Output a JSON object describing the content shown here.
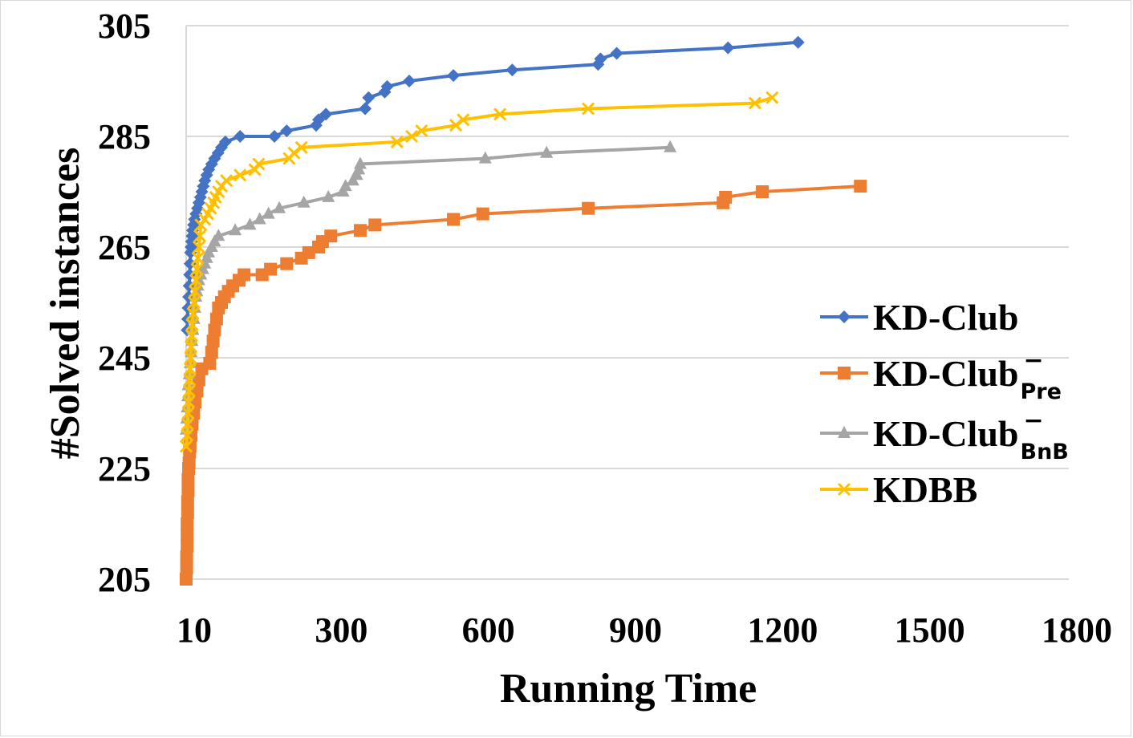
{
  "chart_data": {
    "type": "line",
    "title": "",
    "xlabel": "Running Time",
    "ylabel": "#Solved instances",
    "xlim": [
      0,
      1800
    ],
    "ylim": [
      205,
      305
    ],
    "x_ticks": [
      10,
      300,
      600,
      900,
      1200,
      1500,
      1800
    ],
    "x_tick_labels": [
      "10",
      "300",
      "600",
      "900",
      "1200",
      "1500",
      "1800"
    ],
    "y_ticks": [
      205,
      225,
      245,
      265,
      285,
      305
    ],
    "y_tick_labels": [
      "205",
      "225",
      "245",
      "265",
      "285",
      "305"
    ],
    "grid": "horizontal",
    "legend_position": "right",
    "series": [
      {
        "name": "KD-Club",
        "label_main": "KD-Club",
        "label_sub": "",
        "label_sup": "",
        "color": "#4472C4",
        "marker": "diamond",
        "points": [
          [
            2,
            250
          ],
          [
            3,
            252
          ],
          [
            4,
            254
          ],
          [
            5,
            256
          ],
          [
            6,
            258
          ],
          [
            7,
            260
          ],
          [
            8,
            262
          ],
          [
            9,
            264
          ],
          [
            10,
            265
          ],
          [
            11,
            266
          ],
          [
            12,
            267
          ],
          [
            13,
            268
          ],
          [
            15,
            269
          ],
          [
            17,
            270
          ],
          [
            20,
            271
          ],
          [
            23,
            272
          ],
          [
            26,
            273
          ],
          [
            29,
            274
          ],
          [
            32,
            275
          ],
          [
            35,
            276
          ],
          [
            38,
            277
          ],
          [
            42,
            278
          ],
          [
            46,
            279
          ],
          [
            52,
            280
          ],
          [
            58,
            281
          ],
          [
            65,
            282
          ],
          [
            72,
            283
          ],
          [
            80,
            284
          ],
          [
            110,
            285
          ],
          [
            180,
            285
          ],
          [
            205,
            286
          ],
          [
            265,
            287
          ],
          [
            270,
            288
          ],
          [
            285,
            289
          ],
          [
            365,
            290
          ],
          [
            372,
            292
          ],
          [
            405,
            293
          ],
          [
            410,
            294
          ],
          [
            455,
            295
          ],
          [
            545,
            296
          ],
          [
            665,
            297
          ],
          [
            840,
            298
          ],
          [
            845,
            299
          ],
          [
            878,
            300
          ],
          [
            1105,
            301
          ],
          [
            1248,
            302
          ]
        ]
      },
      {
        "name": "KD-Club_Pre^-",
        "label_main": "KD-Club",
        "label_sub": "Pre",
        "label_sup": "−",
        "color": "#ED7D31",
        "marker": "square",
        "points": [
          [
            0,
            205
          ],
          [
            1,
            207
          ],
          [
            1,
            209
          ],
          [
            2,
            211
          ],
          [
            2,
            213
          ],
          [
            2,
            215
          ],
          [
            3,
            217
          ],
          [
            3,
            219
          ],
          [
            4,
            221
          ],
          [
            4,
            223
          ],
          [
            5,
            225
          ],
          [
            6,
            226
          ],
          [
            7,
            228
          ],
          [
            8,
            229
          ],
          [
            10,
            231
          ],
          [
            12,
            233
          ],
          [
            15,
            235
          ],
          [
            18,
            237
          ],
          [
            22,
            239
          ],
          [
            26,
            241
          ],
          [
            32,
            243
          ],
          [
            48,
            244
          ],
          [
            52,
            246
          ],
          [
            55,
            248
          ],
          [
            58,
            250
          ],
          [
            62,
            252
          ],
          [
            66,
            254
          ],
          [
            72,
            255
          ],
          [
            78,
            256
          ],
          [
            86,
            257
          ],
          [
            95,
            258
          ],
          [
            108,
            259
          ],
          [
            118,
            260
          ],
          [
            155,
            260
          ],
          [
            172,
            261
          ],
          [
            205,
            262
          ],
          [
            235,
            263
          ],
          [
            250,
            264
          ],
          [
            270,
            265
          ],
          [
            278,
            266
          ],
          [
            295,
            267
          ],
          [
            355,
            268
          ],
          [
            385,
            269
          ],
          [
            545,
            270
          ],
          [
            605,
            271
          ],
          [
            820,
            272
          ],
          [
            1095,
            273
          ],
          [
            1100,
            274
          ],
          [
            1175,
            275
          ],
          [
            1375,
            276
          ]
        ]
      },
      {
        "name": "KD-Club_BnB^-",
        "label_main": "KD-Club",
        "label_sub": "BnB",
        "label_sup": "−",
        "color": "#A5A5A5",
        "marker": "triangle",
        "points": [
          [
            0,
            232
          ],
          [
            1,
            234
          ],
          [
            2,
            236
          ],
          [
            3,
            238
          ],
          [
            4,
            240
          ],
          [
            6,
            242
          ],
          [
            8,
            244
          ],
          [
            10,
            246
          ],
          [
            12,
            248
          ],
          [
            14,
            250
          ],
          [
            16,
            252
          ],
          [
            18,
            254
          ],
          [
            20,
            256
          ],
          [
            22,
            257
          ],
          [
            24,
            258
          ],
          [
            26,
            259
          ],
          [
            30,
            260
          ],
          [
            34,
            261
          ],
          [
            38,
            262
          ],
          [
            42,
            263
          ],
          [
            46,
            264
          ],
          [
            52,
            265
          ],
          [
            58,
            266
          ],
          [
            66,
            267
          ],
          [
            100,
            268
          ],
          [
            130,
            269
          ],
          [
            150,
            270
          ],
          [
            168,
            271
          ],
          [
            190,
            272
          ],
          [
            240,
            273
          ],
          [
            290,
            274
          ],
          [
            320,
            275
          ],
          [
            325,
            276
          ],
          [
            340,
            277
          ],
          [
            348,
            278
          ],
          [
            352,
            279
          ],
          [
            355,
            280
          ],
          [
            610,
            281
          ],
          [
            735,
            282
          ],
          [
            987,
            283
          ]
        ]
      },
      {
        "name": "KDBB",
        "label_main": "KDBB",
        "label_sub": "",
        "label_sup": "",
        "color": "#FFC000",
        "marker": "cross",
        "points": [
          [
            0,
            229
          ],
          [
            2,
            231
          ],
          [
            3,
            233
          ],
          [
            4,
            235
          ],
          [
            5,
            237
          ],
          [
            6,
            239
          ],
          [
            7,
            241
          ],
          [
            8,
            243
          ],
          [
            9,
            245
          ],
          [
            10,
            247
          ],
          [
            11,
            249
          ],
          [
            12,
            251
          ],
          [
            14,
            253
          ],
          [
            16,
            255
          ],
          [
            18,
            257
          ],
          [
            20,
            259
          ],
          [
            22,
            261
          ],
          [
            24,
            263
          ],
          [
            26,
            265
          ],
          [
            28,
            267
          ],
          [
            30,
            269
          ],
          [
            38,
            270
          ],
          [
            44,
            271
          ],
          [
            50,
            272
          ],
          [
            56,
            273
          ],
          [
            60,
            274
          ],
          [
            66,
            275
          ],
          [
            72,
            276
          ],
          [
            82,
            277
          ],
          [
            110,
            278
          ],
          [
            140,
            279
          ],
          [
            148,
            280
          ],
          [
            210,
            281
          ],
          [
            220,
            282
          ],
          [
            235,
            283
          ],
          [
            430,
            284
          ],
          [
            460,
            285
          ],
          [
            480,
            286
          ],
          [
            550,
            287
          ],
          [
            565,
            288
          ],
          [
            640,
            289
          ],
          [
            820,
            290
          ],
          [
            1160,
            291
          ],
          [
            1195,
            292
          ]
        ]
      }
    ]
  }
}
